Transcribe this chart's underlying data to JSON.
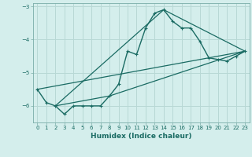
{
  "xlabel": "Humidex (Indice chaleur)",
  "ylabel": "",
  "background_color": "#d4eeec",
  "grid_color": "#b8d8d5",
  "line_color": "#1a6b63",
  "xlim": [
    -0.5,
    23.5
  ],
  "ylim": [
    -6.5,
    -2.9
  ],
  "yticks": [
    -6,
    -5,
    -4,
    -3
  ],
  "xticks": [
    0,
    1,
    2,
    3,
    4,
    5,
    6,
    7,
    8,
    9,
    10,
    11,
    12,
    13,
    14,
    15,
    16,
    17,
    18,
    19,
    20,
    21,
    22,
    23
  ],
  "series": [
    [
      0,
      -5.5
    ],
    [
      1,
      -5.9
    ],
    [
      2,
      -6.0
    ],
    [
      3,
      -6.25
    ],
    [
      4,
      -6.0
    ],
    [
      5,
      -6.0
    ],
    [
      6,
      -6.0
    ],
    [
      7,
      -6.0
    ],
    [
      8,
      -5.7
    ],
    [
      9,
      -5.35
    ],
    [
      10,
      -4.35
    ],
    [
      11,
      -4.45
    ],
    [
      12,
      -3.65
    ],
    [
      13,
      -3.2
    ],
    [
      14,
      -3.1
    ],
    [
      15,
      -3.45
    ],
    [
      16,
      -3.65
    ],
    [
      17,
      -3.65
    ],
    [
      18,
      -4.05
    ],
    [
      19,
      -4.55
    ],
    [
      20,
      -4.6
    ],
    [
      21,
      -4.65
    ],
    [
      22,
      -4.5
    ],
    [
      23,
      -4.35
    ]
  ],
  "line2": [
    [
      0,
      -5.5
    ],
    [
      23,
      -4.35
    ]
  ],
  "line3": [
    [
      2,
      -6.0
    ],
    [
      14,
      -3.1
    ],
    [
      23,
      -4.35
    ]
  ],
  "line4": [
    [
      2,
      -6.0
    ],
    [
      8,
      -5.7
    ],
    [
      23,
      -4.35
    ]
  ]
}
